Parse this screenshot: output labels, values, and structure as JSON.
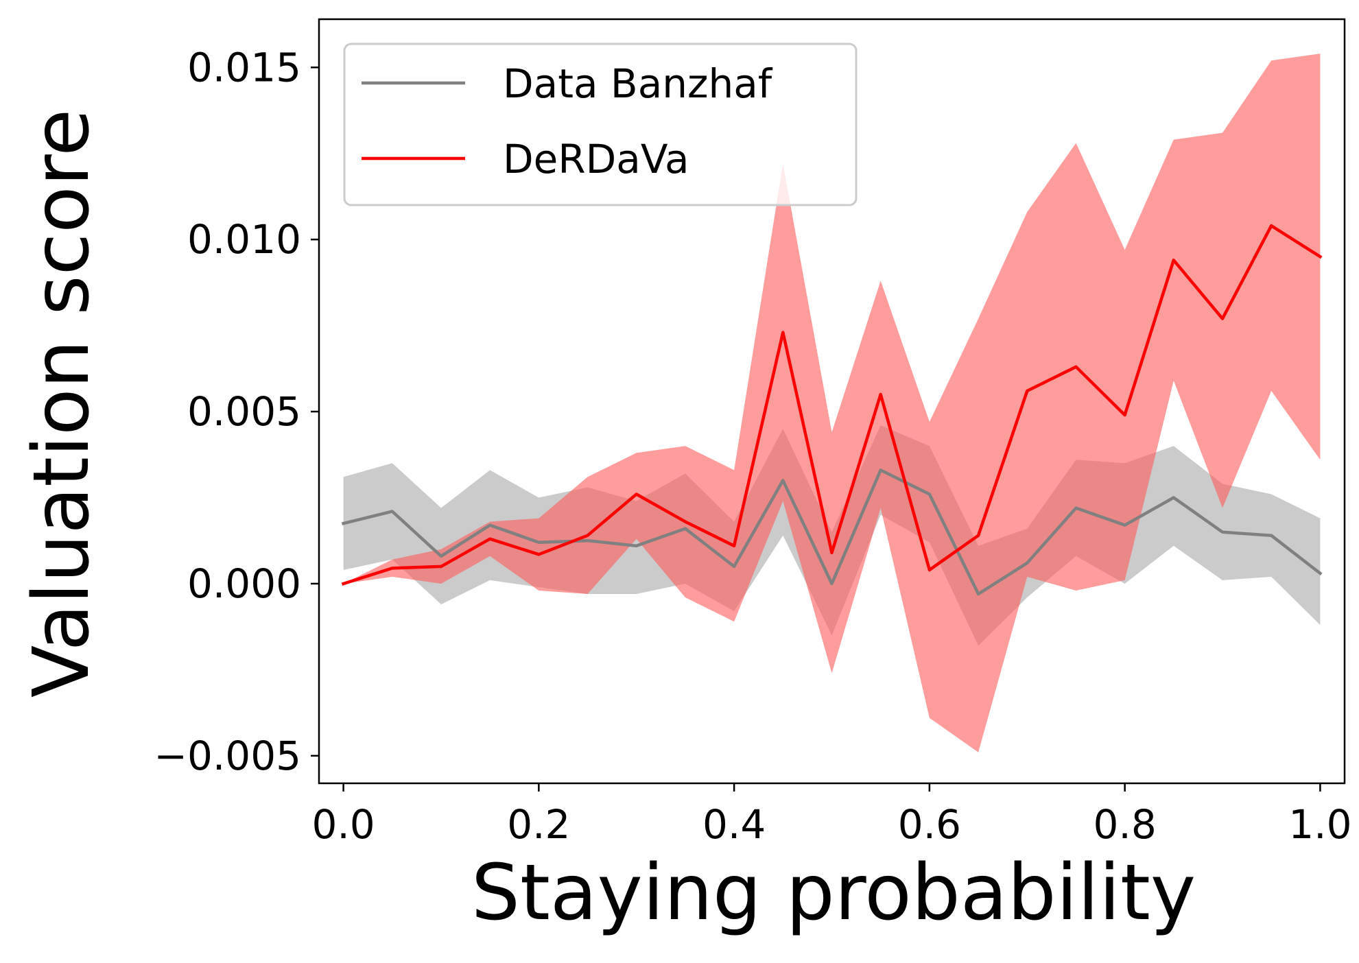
{
  "chart_data": {
    "type": "line",
    "xlabel": "Staying probability",
    "ylabel": "Valuation score",
    "xlim": [
      -0.025,
      1.025
    ],
    "ylim": [
      -0.0058,
      0.0164
    ],
    "xticks": [
      0.0,
      0.2,
      0.4,
      0.6,
      0.8,
      1.0
    ],
    "xtick_labels": [
      "0.0",
      "0.2",
      "0.4",
      "0.6",
      "0.8",
      "1.0"
    ],
    "yticks": [
      -0.005,
      0.0,
      0.005,
      0.01,
      0.015
    ],
    "ytick_labels": [
      "−0.005",
      "0.000",
      "0.005",
      "0.010",
      "0.015"
    ],
    "grid": false,
    "legend_position": "top-left",
    "x": [
      0.0,
      0.05,
      0.1,
      0.15,
      0.2,
      0.25,
      0.3,
      0.35,
      0.4,
      0.45,
      0.5,
      0.55,
      0.6,
      0.65,
      0.7,
      0.75,
      0.8,
      0.85,
      0.9,
      0.95,
      1.0
    ],
    "series": [
      {
        "name": "Data Banzhaf",
        "color": "#808080",
        "band_color": "#c8c8c8",
        "values": [
          0.00175,
          0.0021,
          0.0008,
          0.0017,
          0.0012,
          0.00125,
          0.0011,
          0.0016,
          0.0005,
          0.003,
          0.0,
          0.0033,
          0.0026,
          -0.0003,
          0.0006,
          0.0022,
          0.0017,
          0.0025,
          0.0015,
          0.0014,
          0.0003
        ],
        "lower": [
          0.0004,
          0.0007,
          -0.0006,
          0.0001,
          -0.0001,
          -0.0003,
          -0.0003,
          0.0,
          -0.0008,
          0.0014,
          -0.0015,
          0.002,
          0.0012,
          -0.0018,
          -0.0004,
          0.0008,
          0.0,
          0.0011,
          0.0001,
          0.0002,
          -0.0012
        ],
        "upper": [
          0.0031,
          0.0035,
          0.0022,
          0.0033,
          0.0025,
          0.0028,
          0.0024,
          0.0032,
          0.0018,
          0.0045,
          0.0015,
          0.0046,
          0.004,
          0.0011,
          0.0016,
          0.0036,
          0.0035,
          0.004,
          0.0029,
          0.0026,
          0.0019
        ]
      },
      {
        "name": "DeRDaVa",
        "color": "#ff0000",
        "band_color": "#ff5a5a",
        "values": [
          0.0,
          0.00045,
          0.0005,
          0.0013,
          0.00085,
          0.0014,
          0.0026,
          0.0018,
          0.0011,
          0.0073,
          0.0009,
          0.0055,
          0.0004,
          0.0014,
          0.0056,
          0.0063,
          0.0049,
          0.0094,
          0.0077,
          0.0104,
          0.0095
        ],
        "lower": [
          0.0,
          0.0002,
          0.0,
          0.0008,
          -0.0002,
          -0.0003,
          0.0013,
          -0.0004,
          -0.0011,
          0.0024,
          -0.0026,
          0.0022,
          -0.0039,
          -0.0049,
          0.0002,
          -0.0002,
          0.0001,
          0.0059,
          0.0022,
          0.0056,
          0.0036
        ],
        "upper": [
          0.0,
          0.0007,
          0.001,
          0.0018,
          0.0019,
          0.0031,
          0.0038,
          0.004,
          0.0033,
          0.0122,
          0.0044,
          0.0088,
          0.0047,
          0.0077,
          0.0108,
          0.0128,
          0.0097,
          0.0129,
          0.0131,
          0.0152,
          0.0154
        ]
      }
    ]
  }
}
